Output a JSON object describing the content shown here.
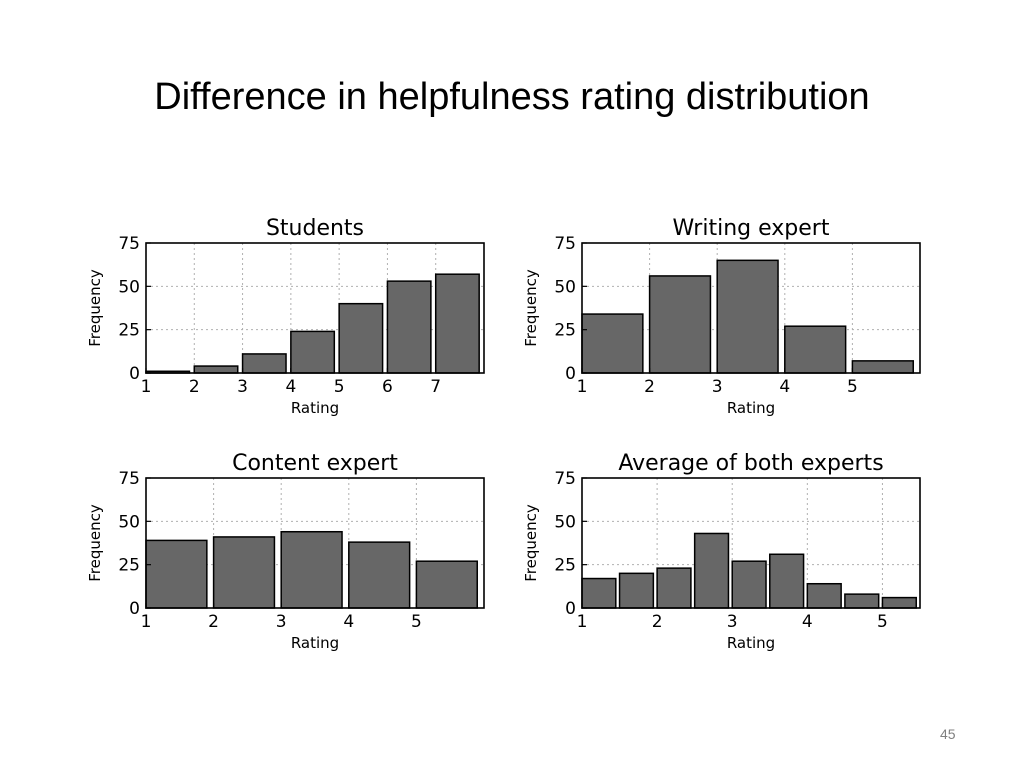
{
  "slide": {
    "title": "Difference in helpfulness rating distribution",
    "page_number": "45"
  },
  "chart_data": [
    {
      "type": "bar",
      "title": "Students",
      "xlabel": "Rating",
      "ylabel": "Frequency",
      "xlim": [
        1,
        8
      ],
      "ylim": [
        0,
        75
      ],
      "xticks": [
        1,
        2,
        3,
        4,
        5,
        6,
        7
      ],
      "yticks": [
        0,
        25,
        50,
        75
      ],
      "bin_width": 1,
      "bins": [
        1,
        2,
        3,
        4,
        5,
        6,
        7
      ],
      "values": [
        1,
        4,
        11,
        24,
        40,
        53,
        57
      ],
      "grid": true
    },
    {
      "type": "bar",
      "title": "Writing expert",
      "xlabel": "Rating",
      "ylabel": "Frequency",
      "xlim": [
        1,
        6
      ],
      "ylim": [
        0,
        75
      ],
      "xticks": [
        1,
        2,
        3,
        4,
        5
      ],
      "yticks": [
        0,
        25,
        50,
        75
      ],
      "bin_width": 1,
      "bins": [
        1,
        2,
        3,
        4,
        5
      ],
      "values": [
        34,
        56,
        65,
        27,
        7
      ],
      "grid": true
    },
    {
      "type": "bar",
      "title": "Content expert",
      "xlabel": "Rating",
      "ylabel": "Frequency",
      "xlim": [
        1,
        6
      ],
      "ylim": [
        0,
        75
      ],
      "xticks": [
        1,
        2,
        3,
        4,
        5
      ],
      "yticks": [
        0,
        25,
        50,
        75
      ],
      "bin_width": 1,
      "bins": [
        1,
        2,
        3,
        4,
        5
      ],
      "values": [
        39,
        41,
        44,
        38,
        27
      ],
      "grid": true
    },
    {
      "type": "bar",
      "title": "Average of both experts",
      "xlabel": "Rating",
      "ylabel": "Frequency",
      "xlim": [
        1,
        5.5
      ],
      "ylim": [
        0,
        75
      ],
      "xticks": [
        1,
        2,
        3,
        4,
        5
      ],
      "yticks": [
        0,
        25,
        50,
        75
      ],
      "bin_width": 0.5,
      "bins": [
        1,
        1.5,
        2,
        2.5,
        3,
        3.5,
        4,
        4.5,
        5
      ],
      "values": [
        17,
        20,
        23,
        43,
        27,
        31,
        14,
        8,
        6
      ],
      "grid": true
    }
  ]
}
